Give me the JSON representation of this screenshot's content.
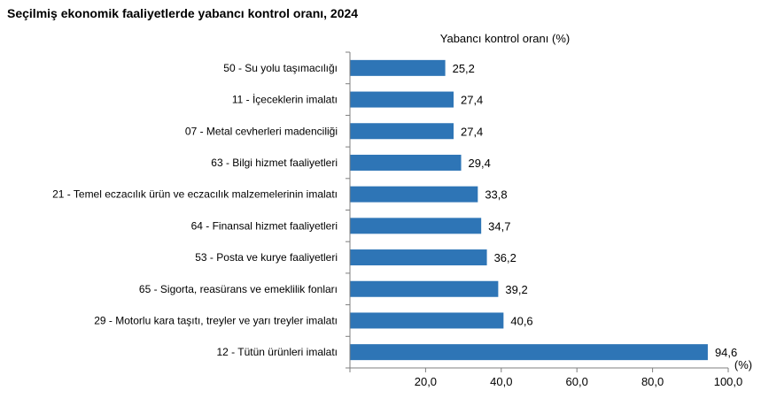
{
  "chart_data": {
    "type": "bar",
    "orientation": "horizontal",
    "title": "Seçilmiş ekonomik faaliyetlerde yabancı kontrol oranı, 2024",
    "series_label": "Yabancı kontrol oranı (%)",
    "unit_label": "(%)",
    "categories": [
      "50 - Su yolu taşımacılığı",
      "11 - İçeceklerin imalatı",
      "07 - Metal cevherleri madenciliği",
      "63 - Bilgi hizmet faaliyetleri",
      "21 - Temel eczacılık ürün ve eczacılık malzemelerinin imalatı",
      "64 - Finansal hizmet faaliyetleri",
      "53 - Posta ve kurye faaliyetleri",
      "65 - Sigorta, reasürans ve emeklilik fonları",
      "29 - Motorlu kara taşıtı, treyler ve yarı treyler imalatı",
      "12 - Tütün ürünleri imalatı"
    ],
    "values": [
      25.2,
      27.4,
      27.4,
      29.4,
      33.8,
      34.7,
      36.2,
      39.2,
      40.6,
      94.6
    ],
    "value_labels": [
      "25,2",
      "27,4",
      "27,4",
      "29,4",
      "33,8",
      "34,7",
      "36,2",
      "39,2",
      "40,6",
      "94,6"
    ],
    "xlim": [
      0,
      100
    ],
    "x_ticks": [
      0,
      20,
      40,
      60,
      80,
      100
    ],
    "x_tick_labels": [
      "",
      "20,0",
      "40,0",
      "60,0",
      "80,0",
      "100,0"
    ],
    "grid": false,
    "legend": "none",
    "bar_color": "#2e75b6"
  }
}
